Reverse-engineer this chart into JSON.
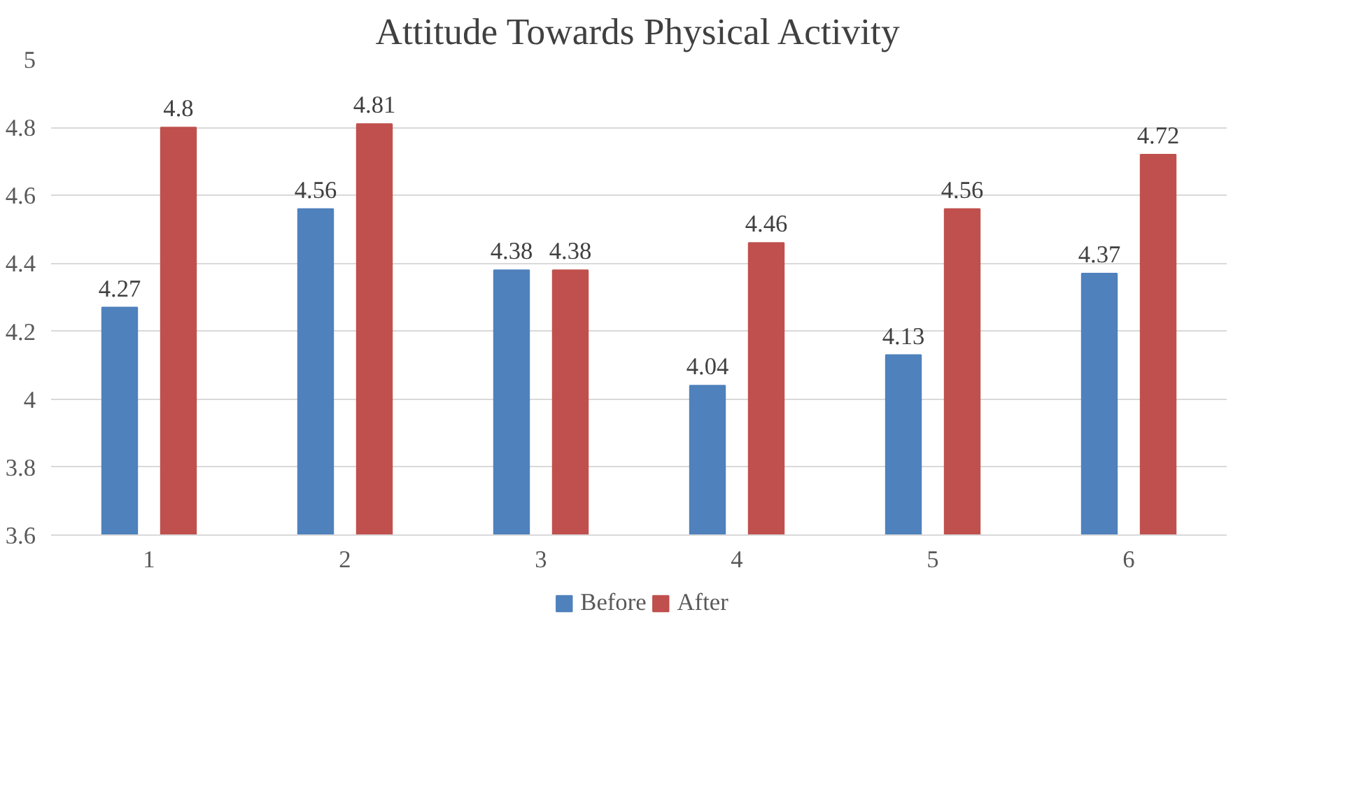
{
  "chart_data": {
    "type": "bar",
    "title": "Attitude Towards Physical Activity",
    "categories": [
      "1",
      "2",
      "3",
      "4",
      "5",
      "6"
    ],
    "series": [
      {
        "name": "Before",
        "color": "#4f81bd",
        "values": [
          4.27,
          4.56,
          4.38,
          4.04,
          4.13,
          4.37
        ]
      },
      {
        "name": "After",
        "color": "#c0504d",
        "values": [
          4.8,
          4.81,
          4.38,
          4.46,
          4.56,
          4.72
        ]
      }
    ],
    "ylim": [
      3.6,
      5
    ],
    "yticks": [
      3.6,
      3.8,
      4,
      4.2,
      4.4,
      4.6,
      4.8,
      5
    ],
    "grid": "y",
    "legend": "bottom",
    "data_labels": true
  }
}
